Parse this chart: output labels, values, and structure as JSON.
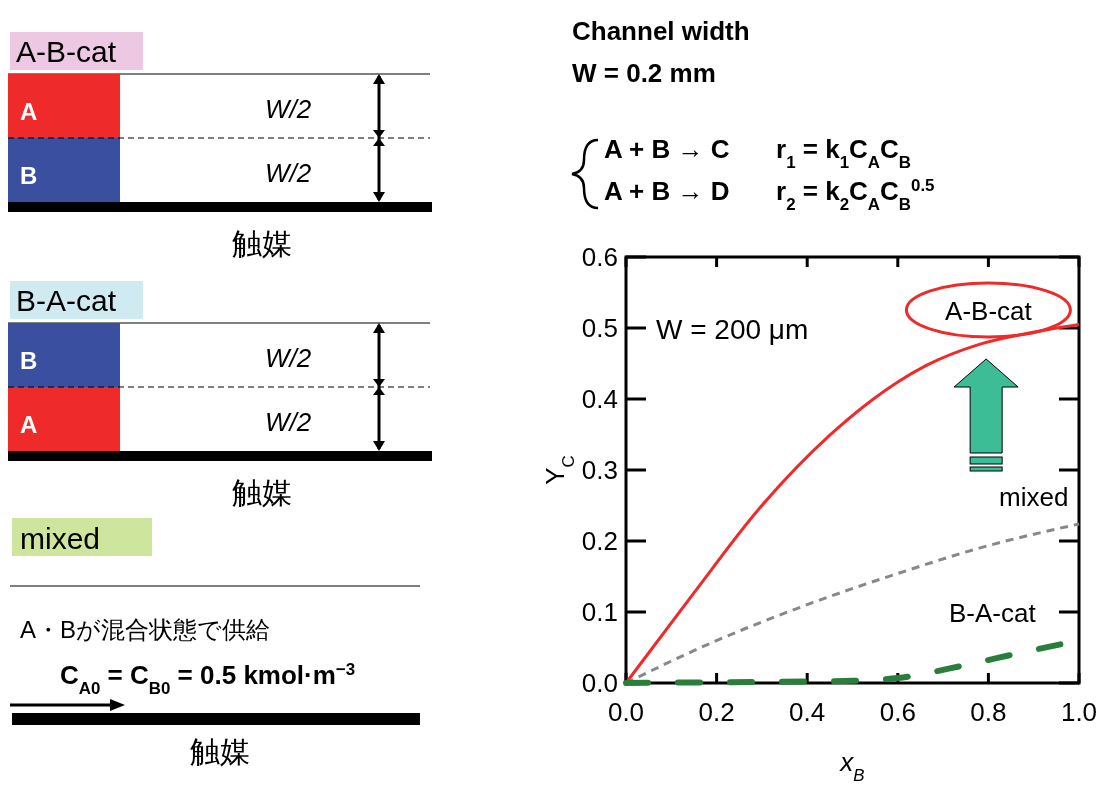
{
  "chart_data": {
    "type": "line",
    "xlabel": "x$_{B}$",
    "ylabel": "Y$_{C}$",
    "xlim": [
      0,
      1
    ],
    "ylim": [
      0,
      0.6
    ],
    "xticks": [
      {
        "value": 0,
        "label": "0.0"
      },
      0.2,
      0.4,
      0.6,
      0.8,
      {
        "value": 1,
        "label": "1.0"
      }
    ],
    "yticks": [
      {
        "value": 0,
        "label": "0.0"
      },
      0.1,
      0.2,
      0.3,
      0.4,
      0.5,
      0.6
    ],
    "grid": false,
    "marker": "none",
    "series": [
      {
        "name": "A-B-cat",
        "color": "#ee2a2a",
        "line_style": "solid",
        "x": [
          0,
          0.15,
          0.292,
          0.45,
          0.544,
          0.6,
          0.662,
          0.78,
          0.899,
          1
        ],
        "values": [
          0,
          0.127,
          0.244,
          0.349,
          0.399,
          0.424,
          0.447,
          0.477,
          0.494,
          0.505
        ]
      },
      {
        "name": "mixed",
        "color": "#888888",
        "line_style": "dashed",
        "x": [
          0,
          0.19,
          0.386,
          0.623,
          0.78,
          1
        ],
        "values": [
          0,
          0.057,
          0.107,
          0.159,
          0.19,
          0.224
        ]
      },
      {
        "name": "B-A-cat",
        "color": "#2a7d3a",
        "line_style": "dashed",
        "x": [
          0,
          0.2,
          0.4,
          0.5,
          0.6,
          0.74,
          0.86,
          1
        ],
        "values": [
          0,
          0.001,
          0.002,
          0.003,
          0.007,
          0.024,
          0.041,
          0.06
        ]
      }
    ],
    "annotations": [
      "W = 200 μm",
      "Channel width",
      "W = 0.2 mm",
      "A + B → C",
      "r$_{1}$ = k$_{1}$C$_{A}$C$_{B}$",
      "A + B → D",
      "r$_{2}$ = k$_{2}$C$_{A}$C$_{B}$$^{0.5}$",
      "A-B-cat",
      "A",
      "B",
      "W/2",
      "W/2",
      "触媒",
      "B-A-cat",
      "B",
      "A",
      "W/2",
      "W/2",
      "触媒",
      "mixed",
      "A・Bが混合状態で供給",
      "C$_{A0}$ = C$_{B0}$ = 0.5 kmol·m$^{−3}$",
      "触媒"
    ]
  }
}
